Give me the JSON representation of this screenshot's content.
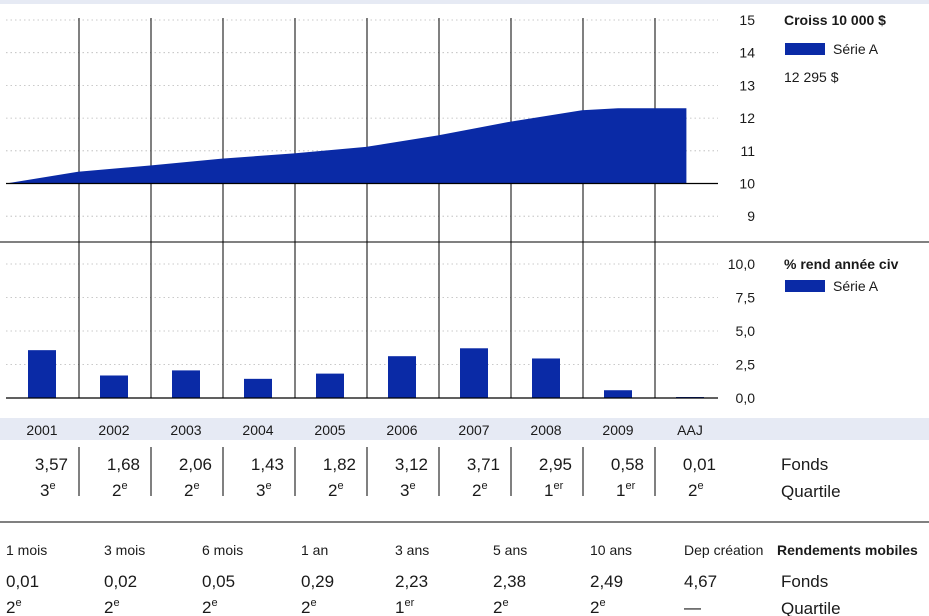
{
  "colors": {
    "accent": "#0a2aa6",
    "band": "#e6eaf4",
    "rule": "#000000",
    "grid": "#b8b8b8"
  },
  "chart_data": [
    {
      "type": "area",
      "title": "Croiss 10 000 $",
      "legend": "Série A",
      "legend_value": "12 295 $",
      "ylim": [
        8.5,
        15
      ],
      "yticks": [
        "15",
        "14",
        "13",
        "12",
        "11",
        "10",
        "9"
      ],
      "ytick_values": [
        15,
        14,
        13,
        12,
        11,
        10,
        9
      ],
      "baseline": 10,
      "x": [
        2000.0,
        2001.0,
        2002.0,
        2003.0,
        2004.0,
        2005.0,
        2006.0,
        2007.0,
        2008.0,
        2008.5,
        2009.0,
        2009.45
      ],
      "y": [
        10.0,
        10.36,
        10.55,
        10.76,
        10.92,
        11.12,
        11.47,
        11.89,
        12.24,
        12.3,
        12.3,
        12.3
      ],
      "series": [
        {
          "name": "Série A"
        }
      ]
    },
    {
      "type": "bar",
      "title": "% rend année civ",
      "legend": "Série A",
      "yticks": [
        "10,0",
        "7,5",
        "5,0",
        "2,5",
        "0,0"
      ],
      "ytick_values": [
        10,
        7.5,
        5,
        2.5,
        0
      ],
      "ylim": [
        0,
        10
      ],
      "categories": [
        "2001",
        "2002",
        "2003",
        "2004",
        "2005",
        "2006",
        "2007",
        "2008",
        "2009",
        "AAJ"
      ],
      "values": [
        3.57,
        1.68,
        2.06,
        1.43,
        1.82,
        3.12,
        3.71,
        2.95,
        0.58,
        0.01
      ],
      "series": [
        {
          "name": "Série A"
        }
      ]
    }
  ],
  "annual_table": {
    "years": [
      "2001",
      "2002",
      "2003",
      "2004",
      "2005",
      "2006",
      "2007",
      "2008",
      "2009",
      "AAJ"
    ],
    "fonds": [
      "3,57",
      "1,68",
      "2,06",
      "1,43",
      "1,82",
      "3,12",
      "3,71",
      "2,95",
      "0,58",
      "0,01"
    ],
    "quartile_num": [
      "3",
      "2",
      "2",
      "3",
      "2",
      "3",
      "2",
      "1",
      "1",
      "2"
    ],
    "quartile_sup": [
      "e",
      "e",
      "e",
      "e",
      "e",
      "e",
      "e",
      "er",
      "er",
      "e"
    ],
    "row_label_fonds": "Fonds",
    "row_label_quartile": "Quartile"
  },
  "rolling_table": {
    "title": "Rendements mobiles",
    "periods": [
      "1 mois",
      "3 mois",
      "6 mois",
      "1 an",
      "3 ans",
      "5 ans",
      "10 ans",
      "Dep création"
    ],
    "fonds": [
      "0,01",
      "0,02",
      "0,05",
      "0,29",
      "2,23",
      "2,38",
      "2,49",
      "4,67"
    ],
    "quartile_num": [
      "2",
      "2",
      "2",
      "2",
      "1",
      "2",
      "2",
      "—"
    ],
    "quartile_sup": [
      "e",
      "e",
      "e",
      "e",
      "er",
      "e",
      "e",
      ""
    ],
    "row_label_fonds": "Fonds",
    "row_label_quartile": "Quartile"
  }
}
